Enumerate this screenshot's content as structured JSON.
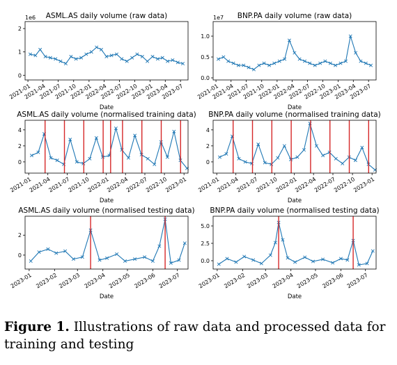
{
  "caption": {
    "label": "Figure 1.",
    "text": "Illustrations of raw data and processed data for training and testing"
  },
  "colors": {
    "series": "#1f77b4",
    "marker_line": "#d62728"
  },
  "chart_data": [
    {
      "type": "line",
      "marker": "x",
      "title": "ASML.AS daily volume (raw data)",
      "xlabel": "Date",
      "ylabel": "",
      "y_multiplier": "1e6",
      "xlim": [
        "2020-12-15",
        "2023-08-15"
      ],
      "ylim": [
        -0.2,
        2.3
      ],
      "yticks": [
        0,
        1,
        2
      ],
      "xticks": [
        "2021-01",
        "2021-04",
        "2021-07",
        "2021-10",
        "2022-01",
        "2022-04",
        "2022-07",
        "2022-10",
        "2023-01",
        "2023-04",
        "2023-07"
      ],
      "series": [
        {
          "x": [
            "2021-01",
            "2021-02",
            "2021-03",
            "2021-04",
            "2021-05",
            "2021-06",
            "2021-07",
            "2021-08",
            "2021-09",
            "2021-10",
            "2021-11",
            "2021-12",
            "2022-01",
            "2022-02",
            "2022-03",
            "2022-04",
            "2022-05",
            "2022-06",
            "2022-07",
            "2022-08",
            "2022-09",
            "2022-10",
            "2022-11",
            "2022-12",
            "2023-01",
            "2023-02",
            "2023-03",
            "2023-04",
            "2023-05",
            "2023-06",
            "2023-07"
          ],
          "values": [
            0.9,
            0.85,
            1.1,
            0.8,
            0.75,
            0.7,
            0.6,
            0.5,
            0.8,
            0.7,
            0.75,
            0.9,
            1.0,
            1.2,
            1.1,
            0.8,
            0.85,
            0.9,
            0.7,
            0.6,
            0.75,
            0.9,
            0.8,
            0.6,
            0.8,
            0.7,
            0.75,
            0.6,
            0.65,
            0.55,
            0.5
          ]
        }
      ],
      "vlines": []
    },
    {
      "type": "line",
      "marker": "x",
      "title": "BNP.PA daily volume (raw data)",
      "xlabel": "Date",
      "ylabel": "",
      "y_multiplier": "1e7",
      "xlim": [
        "2020-12-15",
        "2023-08-15"
      ],
      "ylim": [
        -0.05,
        1.35
      ],
      "yticks": [
        0.0,
        0.5,
        1.0
      ],
      "xticks": [
        "2021-01",
        "2021-04",
        "2021-07",
        "2021-10",
        "2022-01",
        "2022-04",
        "2022-07",
        "2022-10",
        "2023-01",
        "2023-04",
        "2023-07"
      ],
      "series": [
        {
          "x": [
            "2021-01",
            "2021-02",
            "2021-03",
            "2021-04",
            "2021-05",
            "2021-06",
            "2021-07",
            "2021-08",
            "2021-09",
            "2021-10",
            "2021-11",
            "2021-12",
            "2022-01",
            "2022-02",
            "2022-03",
            "2022-04",
            "2022-05",
            "2022-06",
            "2022-07",
            "2022-08",
            "2022-09",
            "2022-10",
            "2022-11",
            "2022-12",
            "2023-01",
            "2023-02",
            "2023-03",
            "2023-04",
            "2023-05",
            "2023-06",
            "2023-07"
          ],
          "values": [
            0.45,
            0.5,
            0.4,
            0.35,
            0.3,
            0.3,
            0.25,
            0.2,
            0.3,
            0.35,
            0.3,
            0.35,
            0.4,
            0.45,
            0.9,
            0.6,
            0.45,
            0.4,
            0.35,
            0.3,
            0.35,
            0.4,
            0.35,
            0.3,
            0.35,
            0.4,
            1.0,
            0.6,
            0.4,
            0.35,
            0.3
          ]
        }
      ],
      "vlines": []
    },
    {
      "type": "line",
      "marker": "x",
      "title": "ASML.AS daily volume (normalised training data)",
      "xlabel": "Date",
      "ylabel": "",
      "y_multiplier": "",
      "xlim": [
        "2020-12-15",
        "2023-01-20"
      ],
      "ylim": [
        -1.4,
        5.2
      ],
      "yticks": [
        0,
        2,
        4
      ],
      "xticks": [
        "2021-01",
        "2021-04",
        "2021-07",
        "2021-10",
        "2022-01",
        "2022-04",
        "2022-07",
        "2022-10",
        "2023-01"
      ],
      "series": [
        {
          "x": [
            "2021-01",
            "2021-02",
            "2021-03",
            "2021-04",
            "2021-05",
            "2021-06",
            "2021-07",
            "2021-08",
            "2021-09",
            "2021-10",
            "2021-11",
            "2021-12",
            "2022-01",
            "2022-02",
            "2022-03",
            "2022-04",
            "2022-05",
            "2022-06",
            "2022-07",
            "2022-08",
            "2022-09",
            "2022-10",
            "2022-11",
            "2022-12",
            "2023-01"
          ],
          "values": [
            0.8,
            1.2,
            3.5,
            0.5,
            0.2,
            -0.3,
            2.8,
            0.0,
            -0.2,
            0.4,
            3.0,
            0.6,
            0.8,
            4.2,
            1.5,
            0.5,
            3.3,
            0.9,
            0.4,
            -0.3,
            2.5,
            0.6,
            3.8,
            0.2,
            -0.8
          ]
        }
      ],
      "vlines": [
        "2021-03-19",
        "2021-06-18",
        "2021-09-17",
        "2021-12-17",
        "2022-01-21",
        "2022-03-18",
        "2022-06-17",
        "2022-09-16",
        "2022-12-16"
      ]
    },
    {
      "type": "line",
      "marker": "x",
      "title": "BNP.PA daily volume (normalised training data)",
      "xlabel": "Date",
      "ylabel": "",
      "y_multiplier": "",
      "xlim": [
        "2020-12-15",
        "2023-01-20"
      ],
      "ylim": [
        -1.4,
        5.2
      ],
      "yticks": [
        0,
        2,
        4
      ],
      "xticks": [
        "2021-01",
        "2021-04",
        "2021-07",
        "2021-10",
        "2022-01",
        "2022-04",
        "2022-07",
        "2022-10",
        "2023-01"
      ],
      "series": [
        {
          "x": [
            "2021-01",
            "2021-02",
            "2021-03",
            "2021-04",
            "2021-05",
            "2021-06",
            "2021-07",
            "2021-08",
            "2021-09",
            "2021-10",
            "2021-11",
            "2021-12",
            "2022-01",
            "2022-02",
            "2022-03",
            "2022-04",
            "2022-05",
            "2022-06",
            "2022-07",
            "2022-08",
            "2022-09",
            "2022-10",
            "2022-11",
            "2022-12",
            "2023-01"
          ],
          "values": [
            0.6,
            1.0,
            3.2,
            0.4,
            0.0,
            -0.2,
            2.2,
            -0.1,
            -0.3,
            0.5,
            2.0,
            0.3,
            0.6,
            1.5,
            4.8,
            2.0,
            0.8,
            1.2,
            0.4,
            -0.2,
            0.6,
            0.2,
            1.8,
            -0.3,
            -1.0
          ]
        }
      ],
      "vlines": [
        "2021-03-19",
        "2021-06-18",
        "2021-09-17",
        "2021-12-17",
        "2022-03-18",
        "2022-06-17",
        "2022-09-16",
        "2022-12-16"
      ]
    },
    {
      "type": "line",
      "marker": "x",
      "title": "ASML.AS daily volume (normalised testing data)",
      "xlabel": "Date",
      "ylabel": "",
      "y_multiplier": "",
      "xlim": [
        "2022-12-27",
        "2023-07-14"
      ],
      "ylim": [
        -1.4,
        3.9
      ],
      "yticks": [
        0,
        2
      ],
      "xticks": [
        "2023-01",
        "2023-02",
        "2023-03",
        "2023-04",
        "2023-05",
        "2023-06",
        "2023-07"
      ],
      "series": [
        {
          "x": [
            "2023-01-03",
            "2023-01-13",
            "2023-01-24",
            "2023-02-03",
            "2023-02-14",
            "2023-02-24",
            "2023-03-07",
            "2023-03-17",
            "2023-03-28",
            "2023-04-06",
            "2023-04-18",
            "2023-04-28",
            "2023-05-10",
            "2023-05-22",
            "2023-06-01",
            "2023-06-09",
            "2023-06-16",
            "2023-06-23",
            "2023-07-03",
            "2023-07-10"
          ],
          "values": [
            -0.6,
            0.3,
            0.6,
            0.2,
            0.4,
            -0.4,
            -0.2,
            2.5,
            -0.5,
            -0.3,
            0.1,
            -0.6,
            -0.4,
            -0.2,
            -0.6,
            0.9,
            3.6,
            -0.8,
            -0.5,
            1.2
          ]
        }
      ],
      "vlines": [
        "2023-03-17",
        "2023-06-16"
      ]
    },
    {
      "type": "line",
      "marker": "x",
      "title": "BNP.PA daily volume (normalised testing data)",
      "xlabel": "Date",
      "ylabel": "",
      "y_multiplier": "",
      "xlim": [
        "2022-12-27",
        "2023-07-14"
      ],
      "ylim": [
        -1.2,
        6.4
      ],
      "yticks": [
        0.0,
        2.5,
        5.0
      ],
      "xticks": [
        "2023-01",
        "2023-02",
        "2023-03",
        "2023-04",
        "2023-05",
        "2023-06",
        "2023-07"
      ],
      "series": [
        {
          "x": [
            "2023-01-03",
            "2023-01-13",
            "2023-01-24",
            "2023-02-03",
            "2023-02-14",
            "2023-02-24",
            "2023-03-07",
            "2023-03-13",
            "2023-03-17",
            "2023-03-22",
            "2023-03-28",
            "2023-04-06",
            "2023-04-18",
            "2023-04-28",
            "2023-05-10",
            "2023-05-22",
            "2023-06-01",
            "2023-06-09",
            "2023-06-16",
            "2023-06-23",
            "2023-07-03",
            "2023-07-10"
          ],
          "values": [
            -0.5,
            0.3,
            -0.2,
            0.6,
            0.1,
            -0.4,
            0.8,
            2.6,
            5.5,
            3.0,
            0.4,
            -0.2,
            0.5,
            -0.1,
            0.2,
            -0.3,
            0.3,
            0.1,
            2.9,
            -0.6,
            -0.4,
            1.4
          ]
        }
      ],
      "vlines": [
        "2023-03-17",
        "2023-06-16"
      ]
    }
  ]
}
